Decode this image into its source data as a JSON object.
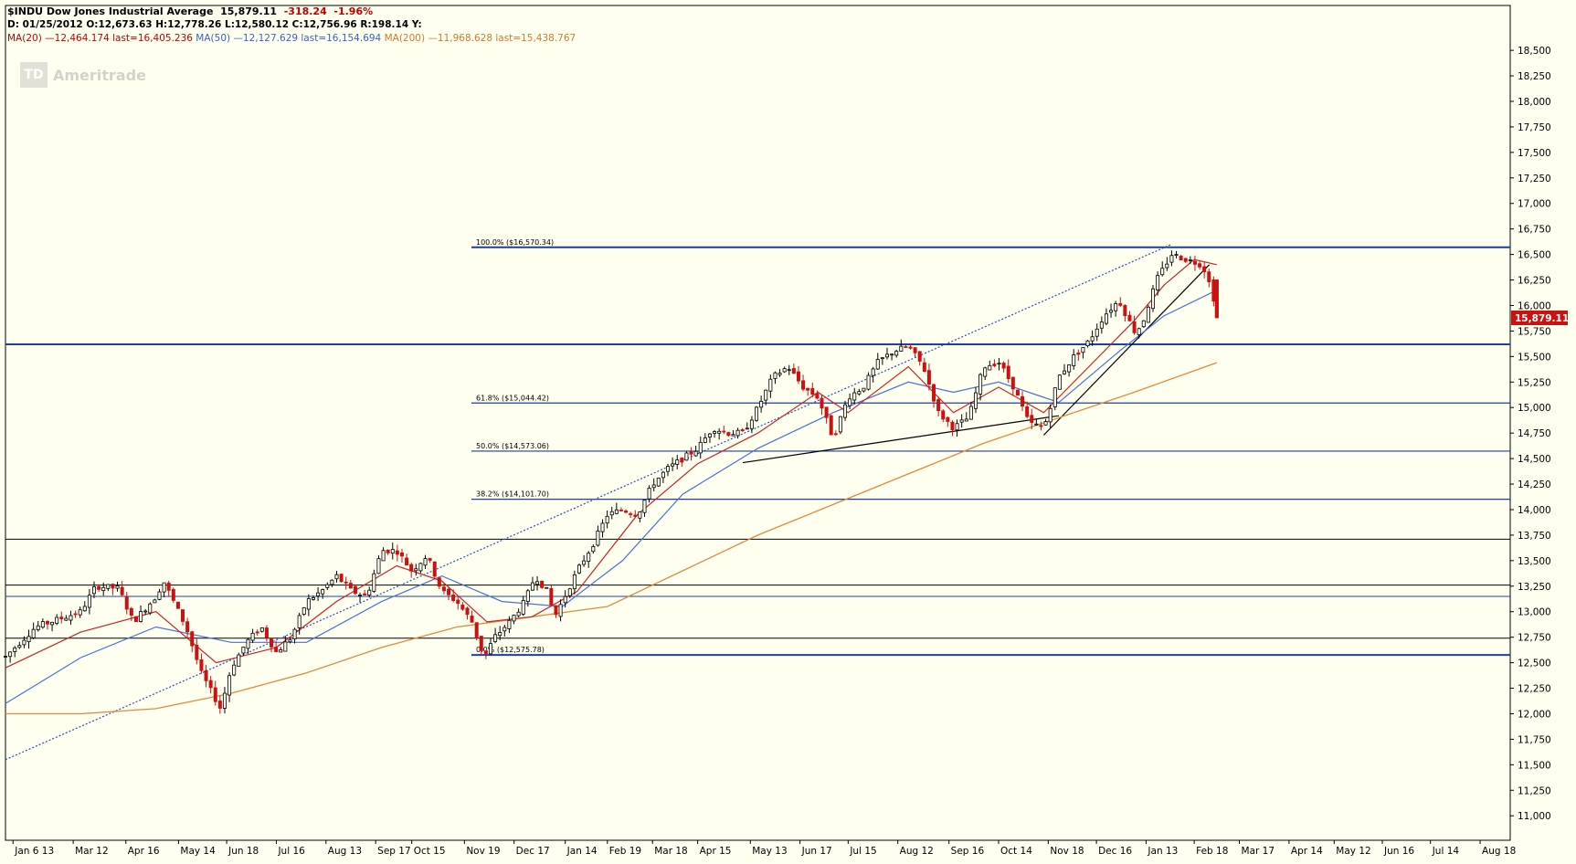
{
  "header": {
    "symbol": "$INDU Dow Jones Industrial Average",
    "last": "15,879.11",
    "change": "-318.24",
    "change_pct": "-1.96%",
    "ohlc": "D: 01/25/2012 O:12,673.63 H:12,778.26 L:12,580.12 C:12,756.96 R:198.14 Y:",
    "ma20": "MA(20) —12,464.174 last=16,405.236",
    "ma50": "MA(50) —12,127.629 last=16,154.694",
    "ma200": "MA(200) —11,968.628 last=15,438.767"
  },
  "logo": {
    "mark": "TD",
    "text": "Ameritrade"
  },
  "price_tag": "15,879.11",
  "chart_data": {
    "type": "candlestick",
    "title": "$INDU Dow Jones Industrial Average",
    "ylim": [
      10850,
      18850
    ],
    "ytick_values": [
      11000,
      11250,
      11500,
      11750,
      12000,
      12250,
      12500,
      12750,
      13000,
      13250,
      13500,
      13750,
      14000,
      14250,
      14500,
      14750,
      15000,
      15250,
      15500,
      15750,
      16000,
      16250,
      16500,
      16750,
      17000,
      17250,
      17500,
      17750,
      18000,
      18250,
      18500
    ],
    "ytick_labels": [
      "11,000",
      "11,250",
      "11,500",
      "11,750",
      "12,000",
      "12,250",
      "12,500",
      "12,750",
      "13,000",
      "13,250",
      "13,500",
      "13,750",
      "14,000",
      "14,250",
      "14,500",
      "14,750",
      "15,000",
      "15,250",
      "15,500",
      "15,750",
      "16,000",
      "16,250",
      "16,500",
      "16,750",
      "17,000",
      "17,250",
      "17,500",
      "17,750",
      "18,000",
      "18,250",
      "18,500"
    ],
    "xtick_labels": [
      "Jan 6 13",
      "Mar 12",
      "Apr 16",
      "May 14",
      "Jun 18",
      "Jul 16",
      "Aug 13",
      "Sep 17",
      "Oct 15",
      "Nov 19",
      "Dec 17",
      "Jan 14",
      "Feb 19",
      "Mar 18",
      "Apr 15",
      "May 13",
      "Jun 17",
      "Jul 15",
      "Aug 12",
      "Sep 16",
      "Oct 14",
      "Nov 18",
      "Dec 16",
      "Jan 13",
      "Feb 18",
      "Mar 17",
      "Apr 14",
      "May 12",
      "Jun 16",
      "Jul 14",
      "Aug 18"
    ],
    "xtick_frac": [
      0.005,
      0.045,
      0.08,
      0.115,
      0.147,
      0.18,
      0.213,
      0.246,
      0.27,
      0.305,
      0.338,
      0.372,
      0.4,
      0.43,
      0.46,
      0.495,
      0.528,
      0.56,
      0.593,
      0.627,
      0.66,
      0.693,
      0.725,
      0.758,
      0.79,
      0.82,
      0.853,
      0.883,
      0.915,
      0.947,
      0.98
    ],
    "price_path": [
      [
        0.0,
        12560
      ],
      [
        0.02,
        12850
      ],
      [
        0.04,
        12950
      ],
      [
        0.05,
        13000
      ],
      [
        0.06,
        13250
      ],
      [
        0.075,
        13230
      ],
      [
        0.085,
        12900
      ],
      [
        0.1,
        13150
      ],
      [
        0.105,
        13300
      ],
      [
        0.12,
        12850
      ],
      [
        0.13,
        12400
      ],
      [
        0.143,
        12050
      ],
      [
        0.15,
        12450
      ],
      [
        0.16,
        12700
      ],
      [
        0.17,
        12850
      ],
      [
        0.18,
        12600
      ],
      [
        0.19,
        12750
      ],
      [
        0.2,
        13100
      ],
      [
        0.21,
        13200
      ],
      [
        0.22,
        13350
      ],
      [
        0.23,
        13200
      ],
      [
        0.24,
        13150
      ],
      [
        0.25,
        13600
      ],
      [
        0.26,
        13600
      ],
      [
        0.27,
        13400
      ],
      [
        0.28,
        13550
      ],
      [
        0.29,
        13200
      ],
      [
        0.3,
        13100
      ],
      [
        0.31,
        12900
      ],
      [
        0.318,
        12550
      ],
      [
        0.325,
        12750
      ],
      [
        0.335,
        12900
      ],
      [
        0.345,
        13100
      ],
      [
        0.352,
        13350
      ],
      [
        0.36,
        13200
      ],
      [
        0.365,
        12950
      ],
      [
        0.37,
        13100
      ],
      [
        0.38,
        13400
      ],
      [
        0.39,
        13650
      ],
      [
        0.4,
        13950
      ],
      [
        0.41,
        14000
      ],
      [
        0.42,
        13950
      ],
      [
        0.43,
        14250
      ],
      [
        0.44,
        14400
      ],
      [
        0.45,
        14500
      ],
      [
        0.46,
        14600
      ],
      [
        0.47,
        14800
      ],
      [
        0.48,
        14750
      ],
      [
        0.49,
        14750
      ],
      [
        0.5,
        15000
      ],
      [
        0.51,
        15300
      ],
      [
        0.52,
        15400
      ],
      [
        0.53,
        15200
      ],
      [
        0.54,
        15100
      ],
      [
        0.55,
        14700
      ],
      [
        0.56,
        15100
      ],
      [
        0.57,
        15200
      ],
      [
        0.58,
        15450
      ],
      [
        0.59,
        15550
      ],
      [
        0.6,
        15600
      ],
      [
        0.61,
        15400
      ],
      [
        0.62,
        14950
      ],
      [
        0.63,
        14800
      ],
      [
        0.64,
        14900
      ],
      [
        0.65,
        15400
      ],
      [
        0.66,
        15450
      ],
      [
        0.67,
        15200
      ],
      [
        0.68,
        14850
      ],
      [
        0.69,
        14800
      ],
      [
        0.7,
        15300
      ],
      [
        0.71,
        15500
      ],
      [
        0.72,
        15650
      ],
      [
        0.73,
        15900
      ],
      [
        0.74,
        16050
      ],
      [
        0.75,
        15750
      ],
      [
        0.755,
        15800
      ],
      [
        0.765,
        16250
      ],
      [
        0.775,
        16500
      ],
      [
        0.785,
        16450
      ],
      [
        0.795,
        16400
      ],
      [
        0.8,
        16250
      ],
      [
        0.805,
        15880
      ]
    ],
    "ma20_path": [
      [
        0.0,
        12450
      ],
      [
        0.05,
        12800
      ],
      [
        0.1,
        13000
      ],
      [
        0.14,
        12500
      ],
      [
        0.18,
        12650
      ],
      [
        0.22,
        13100
      ],
      [
        0.26,
        13450
      ],
      [
        0.29,
        13300
      ],
      [
        0.32,
        12900
      ],
      [
        0.35,
        12950
      ],
      [
        0.38,
        13200
      ],
      [
        0.42,
        13950
      ],
      [
        0.46,
        14450
      ],
      [
        0.5,
        14750
      ],
      [
        0.54,
        15150
      ],
      [
        0.56,
        14950
      ],
      [
        0.6,
        15400
      ],
      [
        0.63,
        14950
      ],
      [
        0.66,
        15200
      ],
      [
        0.69,
        14950
      ],
      [
        0.72,
        15400
      ],
      [
        0.75,
        15850
      ],
      [
        0.77,
        16200
      ],
      [
        0.79,
        16450
      ],
      [
        0.805,
        16400
      ]
    ],
    "ma50_path": [
      [
        0.0,
        12100
      ],
      [
        0.05,
        12550
      ],
      [
        0.1,
        12850
      ],
      [
        0.15,
        12700
      ],
      [
        0.2,
        12700
      ],
      [
        0.25,
        13100
      ],
      [
        0.29,
        13350
      ],
      [
        0.33,
        13100
      ],
      [
        0.37,
        13050
      ],
      [
        0.41,
        13500
      ],
      [
        0.45,
        14150
      ],
      [
        0.5,
        14600
      ],
      [
        0.55,
        14950
      ],
      [
        0.6,
        15250
      ],
      [
        0.63,
        15150
      ],
      [
        0.66,
        15250
      ],
      [
        0.7,
        15050
      ],
      [
        0.74,
        15550
      ],
      [
        0.77,
        15900
      ],
      [
        0.805,
        16150
      ]
    ],
    "ma200_path": [
      [
        0.0,
        12000
      ],
      [
        0.05,
        12000
      ],
      [
        0.1,
        12050
      ],
      [
        0.15,
        12200
      ],
      [
        0.2,
        12400
      ],
      [
        0.25,
        12650
      ],
      [
        0.3,
        12850
      ],
      [
        0.35,
        12950
      ],
      [
        0.4,
        13050
      ],
      [
        0.45,
        13400
      ],
      [
        0.5,
        13750
      ],
      [
        0.55,
        14050
      ],
      [
        0.6,
        14350
      ],
      [
        0.65,
        14650
      ],
      [
        0.7,
        14900
      ],
      [
        0.75,
        15150
      ],
      [
        0.805,
        15440
      ]
    ],
    "fib_levels": [
      {
        "label": "100.0%  ($16,570.34)",
        "value": 16570.34
      },
      {
        "label": "61.8%  ($15,044.42)",
        "value": 15044.42
      },
      {
        "label": "50.0%  ($14,573.06)",
        "value": 14573.06
      },
      {
        "label": "38.2%  ($14,101.70)",
        "value": 14101.7
      },
      {
        "label": "0.0%  ($12,575.78)",
        "value": 12575.78
      }
    ],
    "support_lines": [
      15620,
      13710,
      13260,
      13150,
      12740
    ],
    "trendlines": [
      {
        "from": [
          0.0,
          11550
        ],
        "to": [
          0.775,
          16600
        ],
        "style": "dotted",
        "color": "#2b4fb0"
      },
      {
        "from": [
          0.49,
          14460
        ],
        "to": [
          0.7,
          14920
        ],
        "style": "solid",
        "color": "#000000"
      },
      {
        "from": [
          0.69,
          14730
        ],
        "to": [
          0.8,
          16400
        ],
        "style": "solid",
        "color": "#000000"
      }
    ]
  }
}
